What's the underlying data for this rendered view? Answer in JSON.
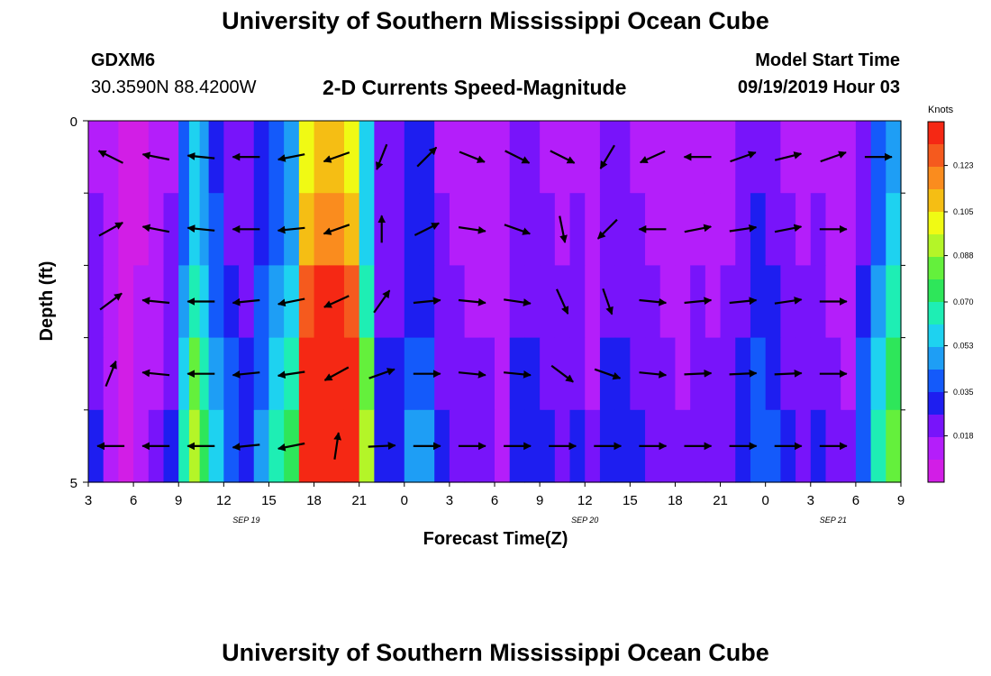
{
  "page": {
    "title_top": "University of Southern Mississippi Ocean Cube",
    "title_bottom": "University of Southern Mississippi Ocean Cube",
    "station_id": "GDXM6",
    "station_coords": "30.3590N 88.4200W",
    "subtitle": "2-D Currents Speed-Magnitude",
    "model_label": "Model Start Time",
    "model_time": "09/19/2019 Hour 03"
  },
  "colors": {
    "palette": [
      "#d21ee6",
      "#b41efa",
      "#7814fa",
      "#1e1ef0",
      "#145afa",
      "#1e9ef5",
      "#1ed2f0",
      "#1eeeb4",
      "#2ee65a",
      "#64f03c",
      "#b4f528",
      "#f0fa14",
      "#f5be14",
      "#fa8c1e",
      "#f55a1e",
      "#f52814"
    ]
  },
  "chart_data": {
    "type": "heatmap",
    "title": "2-D Currents Speed-Magnitude",
    "xlabel": "Forecast Time(Z)",
    "ylabel": "Depth (ft)",
    "xlim": [
      3,
      57
    ],
    "ylim": [
      0,
      5
    ],
    "x_ticks": [
      {
        "h": 3,
        "label": "3"
      },
      {
        "h": 6,
        "label": "6"
      },
      {
        "h": 9,
        "label": "9"
      },
      {
        "h": 12,
        "label": "12"
      },
      {
        "h": 15,
        "label": "15"
      },
      {
        "h": 18,
        "label": "18"
      },
      {
        "h": 21,
        "label": "21"
      },
      {
        "h": 24,
        "label": "0"
      },
      {
        "h": 27,
        "label": "3"
      },
      {
        "h": 30,
        "label": "6"
      },
      {
        "h": 33,
        "label": "9"
      },
      {
        "h": 36,
        "label": "12"
      },
      {
        "h": 39,
        "label": "15"
      },
      {
        "h": 42,
        "label": "18"
      },
      {
        "h": 45,
        "label": "21"
      },
      {
        "h": 48,
        "label": "0"
      },
      {
        "h": 51,
        "label": "3"
      },
      {
        "h": 54,
        "label": "6"
      },
      {
        "h": 57,
        "label": "9"
      }
    ],
    "date_labels": [
      {
        "h": 13.5,
        "label": "SEP 19"
      },
      {
        "h": 36,
        "label": "SEP 20"
      },
      {
        "h": 52.5,
        "label": "SEP 21"
      }
    ],
    "y_ticks": [
      {
        "d": 0,
        "label": "0"
      },
      {
        "d": 5,
        "label": "5"
      }
    ],
    "depth_layers": [
      0.5,
      1.5,
      2.5,
      3.5,
      4.5
    ],
    "colorbar": {
      "unit": "Knots",
      "range": [
        0,
        0.14
      ],
      "ticks": [
        "0.018",
        "0.035",
        "0.053",
        "0.070",
        "0.088",
        "0.105",
        "0.123"
      ]
    },
    "speed_profile": [
      {
        "h": 3,
        "s": 0.018
      },
      {
        "h": 4,
        "s": 0.01
      },
      {
        "h": 5,
        "s": 0.005
      },
      {
        "h": 6,
        "s": 0.008
      },
      {
        "h": 7,
        "s": 0.012
      },
      {
        "h": 8,
        "s": 0.018
      },
      {
        "h": 9,
        "s": 0.042
      },
      {
        "h": 9.7,
        "s": 0.06
      },
      {
        "h": 10.4,
        "s": 0.05
      },
      {
        "h": 11,
        "s": 0.036
      },
      {
        "h": 12,
        "s": 0.026
      },
      {
        "h": 13,
        "s": 0.022
      },
      {
        "h": 14,
        "s": 0.032
      },
      {
        "h": 15,
        "s": 0.04
      },
      {
        "h": 16,
        "s": 0.05
      },
      {
        "h": 17,
        "s": 0.11
      },
      {
        "h": 18,
        "s": 0.12
      },
      {
        "h": 19,
        "s": 0.122
      },
      {
        "h": 20,
        "s": 0.11
      },
      {
        "h": 21,
        "s": 0.06
      },
      {
        "h": 22,
        "s": 0.02
      },
      {
        "h": 23,
        "s": 0.022
      },
      {
        "h": 24,
        "s": 0.03
      },
      {
        "h": 25,
        "s": 0.03
      },
      {
        "h": 26,
        "s": 0.018
      },
      {
        "h": 27,
        "s": 0.016
      },
      {
        "h": 28,
        "s": 0.014
      },
      {
        "h": 29,
        "s": 0.014
      },
      {
        "h": 30,
        "s": 0.01
      },
      {
        "h": 31,
        "s": 0.02
      },
      {
        "h": 32,
        "s": 0.02
      },
      {
        "h": 33,
        "s": 0.018
      },
      {
        "h": 34,
        "s": 0.016
      },
      {
        "h": 35,
        "s": 0.018
      },
      {
        "h": 36,
        "s": 0.012
      },
      {
        "h": 37,
        "s": 0.02
      },
      {
        "h": 38,
        "s": 0.02
      },
      {
        "h": 39,
        "s": 0.018
      },
      {
        "h": 40,
        "s": 0.016
      },
      {
        "h": 41,
        "s": 0.014
      },
      {
        "h": 42,
        "s": 0.012
      },
      {
        "h": 43,
        "s": 0.016
      },
      {
        "h": 44,
        "s": 0.014
      },
      {
        "h": 45,
        "s": 0.016
      },
      {
        "h": 46,
        "s": 0.02
      },
      {
        "h": 47,
        "s": 0.028
      },
      {
        "h": 48,
        "s": 0.024
      },
      {
        "h": 49,
        "s": 0.018
      },
      {
        "h": 50,
        "s": 0.016
      },
      {
        "h": 51,
        "s": 0.018
      },
      {
        "h": 52,
        "s": 0.014
      },
      {
        "h": 53,
        "s": 0.012
      },
      {
        "h": 54,
        "s": 0.026
      },
      {
        "h": 55,
        "s": 0.04
      },
      {
        "h": 56,
        "s": 0.055
      },
      {
        "h": 57,
        "s": 0.062
      }
    ],
    "layer_factors": [
      0.9,
      1.0,
      1.15,
      1.35,
      1.55
    ],
    "vectors": [
      {
        "h": 4.5,
        "d": 0.5,
        "u": -0.6,
        "v": 0.3
      },
      {
        "h": 7.5,
        "d": 0.5,
        "u": -1,
        "v": 0.2
      },
      {
        "h": 10.5,
        "d": 0.5,
        "u": -1,
        "v": 0.1
      },
      {
        "h": 13.5,
        "d": 0.5,
        "u": -1,
        "v": 0
      },
      {
        "h": 16.5,
        "d": 0.5,
        "u": -1,
        "v": -0.2
      },
      {
        "h": 19.5,
        "d": 0.5,
        "u": -1,
        "v": -0.35
      },
      {
        "h": 22.5,
        "d": 0.5,
        "u": -0.4,
        "v": -1
      },
      {
        "h": 25.5,
        "d": 0.5,
        "u": 0.7,
        "v": 0.7
      },
      {
        "h": 28.5,
        "d": 0.5,
        "u": 1,
        "v": -0.4
      },
      {
        "h": 31.5,
        "d": 0.5,
        "u": 1,
        "v": -0.5
      },
      {
        "h": 34.5,
        "d": 0.5,
        "u": 1,
        "v": -0.5
      },
      {
        "h": 37.5,
        "d": 0.5,
        "u": -0.6,
        "v": -1
      },
      {
        "h": 40.5,
        "d": 0.5,
        "u": -1,
        "v": -0.45
      },
      {
        "h": 43.5,
        "d": 0.5,
        "u": -1,
        "v": 0
      },
      {
        "h": 46.5,
        "d": 0.5,
        "u": 1,
        "v": 0.35
      },
      {
        "h": 49.5,
        "d": 0.5,
        "u": 1,
        "v": 0.25
      },
      {
        "h": 52.5,
        "d": 0.5,
        "u": 1,
        "v": 0.35
      },
      {
        "h": 55.5,
        "d": 0.5,
        "u": 1,
        "v": 0
      },
      {
        "h": 4.5,
        "d": 1.5,
        "u": 0.9,
        "v": 0.5
      },
      {
        "h": 7.5,
        "d": 1.5,
        "u": -1,
        "v": 0.2
      },
      {
        "h": 10.5,
        "d": 1.5,
        "u": -1,
        "v": 0.1
      },
      {
        "h": 13.5,
        "d": 1.5,
        "u": -1,
        "v": 0
      },
      {
        "h": 16.5,
        "d": 1.5,
        "u": -1,
        "v": -0.1
      },
      {
        "h": 19.5,
        "d": 1.5,
        "u": -1,
        "v": -0.35
      },
      {
        "h": 22.5,
        "d": 1.5,
        "u": 0,
        "v": 1
      },
      {
        "h": 25.5,
        "d": 1.5,
        "u": 1,
        "v": 0.5
      },
      {
        "h": 28.5,
        "d": 1.5,
        "u": 1,
        "v": -0.15
      },
      {
        "h": 31.5,
        "d": 1.5,
        "u": 1,
        "v": -0.35
      },
      {
        "h": 34.5,
        "d": 1.5,
        "u": 0.2,
        "v": -1
      },
      {
        "h": 37.5,
        "d": 1.5,
        "u": -0.75,
        "v": -0.75
      },
      {
        "h": 40.5,
        "d": 1.5,
        "u": -1,
        "v": 0
      },
      {
        "h": 43.5,
        "d": 1.5,
        "u": 1,
        "v": 0.2
      },
      {
        "h": 46.5,
        "d": 1.5,
        "u": 1,
        "v": 0.15
      },
      {
        "h": 49.5,
        "d": 1.5,
        "u": 1,
        "v": 0.2
      },
      {
        "h": 52.5,
        "d": 1.5,
        "u": 1,
        "v": 0
      },
      {
        "h": 4.5,
        "d": 2.5,
        "u": 0.8,
        "v": 0.6
      },
      {
        "h": 7.5,
        "d": 2.5,
        "u": -1,
        "v": 0.1
      },
      {
        "h": 10.5,
        "d": 2.5,
        "u": -1,
        "v": 0
      },
      {
        "h": 13.5,
        "d": 2.5,
        "u": -1,
        "v": -0.1
      },
      {
        "h": 16.5,
        "d": 2.5,
        "u": -1,
        "v": -0.2
      },
      {
        "h": 19.5,
        "d": 2.5,
        "u": -1,
        "v": -0.45
      },
      {
        "h": 22.5,
        "d": 2.5,
        "u": 0.6,
        "v": 0.85
      },
      {
        "h": 25.5,
        "d": 2.5,
        "u": 1,
        "v": 0.1
      },
      {
        "h": 28.5,
        "d": 2.5,
        "u": 1,
        "v": -0.1
      },
      {
        "h": 31.5,
        "d": 2.5,
        "u": 1,
        "v": -0.15
      },
      {
        "h": 34.5,
        "d": 2.5,
        "u": 0.45,
        "v": -1
      },
      {
        "h": 37.5,
        "d": 2.5,
        "u": 0.35,
        "v": -1
      },
      {
        "h": 40.5,
        "d": 2.5,
        "u": 1,
        "v": -0.1
      },
      {
        "h": 43.5,
        "d": 2.5,
        "u": 1,
        "v": 0.1
      },
      {
        "h": 46.5,
        "d": 2.5,
        "u": 1,
        "v": 0.1
      },
      {
        "h": 49.5,
        "d": 2.5,
        "u": 1,
        "v": 0.15
      },
      {
        "h": 52.5,
        "d": 2.5,
        "u": 1,
        "v": 0
      },
      {
        "h": 4.5,
        "d": 3.5,
        "u": 0.4,
        "v": 1
      },
      {
        "h": 7.5,
        "d": 3.5,
        "u": -1,
        "v": 0.1
      },
      {
        "h": 10.5,
        "d": 3.5,
        "u": -1,
        "v": 0
      },
      {
        "h": 13.5,
        "d": 3.5,
        "u": -1,
        "v": -0.1
      },
      {
        "h": 16.5,
        "d": 3.5,
        "u": -1,
        "v": -0.15
      },
      {
        "h": 19.5,
        "d": 3.5,
        "u": -1,
        "v": -0.55
      },
      {
        "h": 22.5,
        "d": 3.5,
        "u": 1,
        "v": 0.35
      },
      {
        "h": 25.5,
        "d": 3.5,
        "u": 1,
        "v": 0
      },
      {
        "h": 28.5,
        "d": 3.5,
        "u": 1,
        "v": -0.1
      },
      {
        "h": 31.5,
        "d": 3.5,
        "u": 1,
        "v": -0.1
      },
      {
        "h": 34.5,
        "d": 3.5,
        "u": 0.8,
        "v": -0.6
      },
      {
        "h": 37.5,
        "d": 3.5,
        "u": 1,
        "v": -0.35
      },
      {
        "h": 40.5,
        "d": 3.5,
        "u": 1,
        "v": -0.1
      },
      {
        "h": 43.5,
        "d": 3.5,
        "u": 1,
        "v": 0.05
      },
      {
        "h": 46.5,
        "d": 3.5,
        "u": 1,
        "v": 0.05
      },
      {
        "h": 49.5,
        "d": 3.5,
        "u": 1,
        "v": 0.05
      },
      {
        "h": 52.5,
        "d": 3.5,
        "u": 1,
        "v": 0
      },
      {
        "h": 4.5,
        "d": 4.5,
        "u": -1,
        "v": 0
      },
      {
        "h": 7.5,
        "d": 4.5,
        "u": -1,
        "v": 0
      },
      {
        "h": 10.5,
        "d": 4.5,
        "u": -1,
        "v": 0
      },
      {
        "h": 13.5,
        "d": 4.5,
        "u": -1,
        "v": -0.1
      },
      {
        "h": 16.5,
        "d": 4.5,
        "u": -1,
        "v": -0.2
      },
      {
        "h": 19.5,
        "d": 4.5,
        "u": 0.15,
        "v": 1
      },
      {
        "h": 22.5,
        "d": 4.5,
        "u": 1,
        "v": 0.05
      },
      {
        "h": 25.5,
        "d": 4.5,
        "u": 1,
        "v": 0
      },
      {
        "h": 28.5,
        "d": 4.5,
        "u": 1,
        "v": 0
      },
      {
        "h": 31.5,
        "d": 4.5,
        "u": 1,
        "v": 0
      },
      {
        "h": 34.5,
        "d": 4.5,
        "u": 1,
        "v": 0
      },
      {
        "h": 37.5,
        "d": 4.5,
        "u": 1,
        "v": 0
      },
      {
        "h": 40.5,
        "d": 4.5,
        "u": 1,
        "v": 0
      },
      {
        "h": 43.5,
        "d": 4.5,
        "u": 1,
        "v": 0
      },
      {
        "h": 46.5,
        "d": 4.5,
        "u": 1,
        "v": 0
      },
      {
        "h": 49.5,
        "d": 4.5,
        "u": 1,
        "v": 0
      },
      {
        "h": 52.5,
        "d": 4.5,
        "u": 1,
        "v": 0
      }
    ]
  }
}
